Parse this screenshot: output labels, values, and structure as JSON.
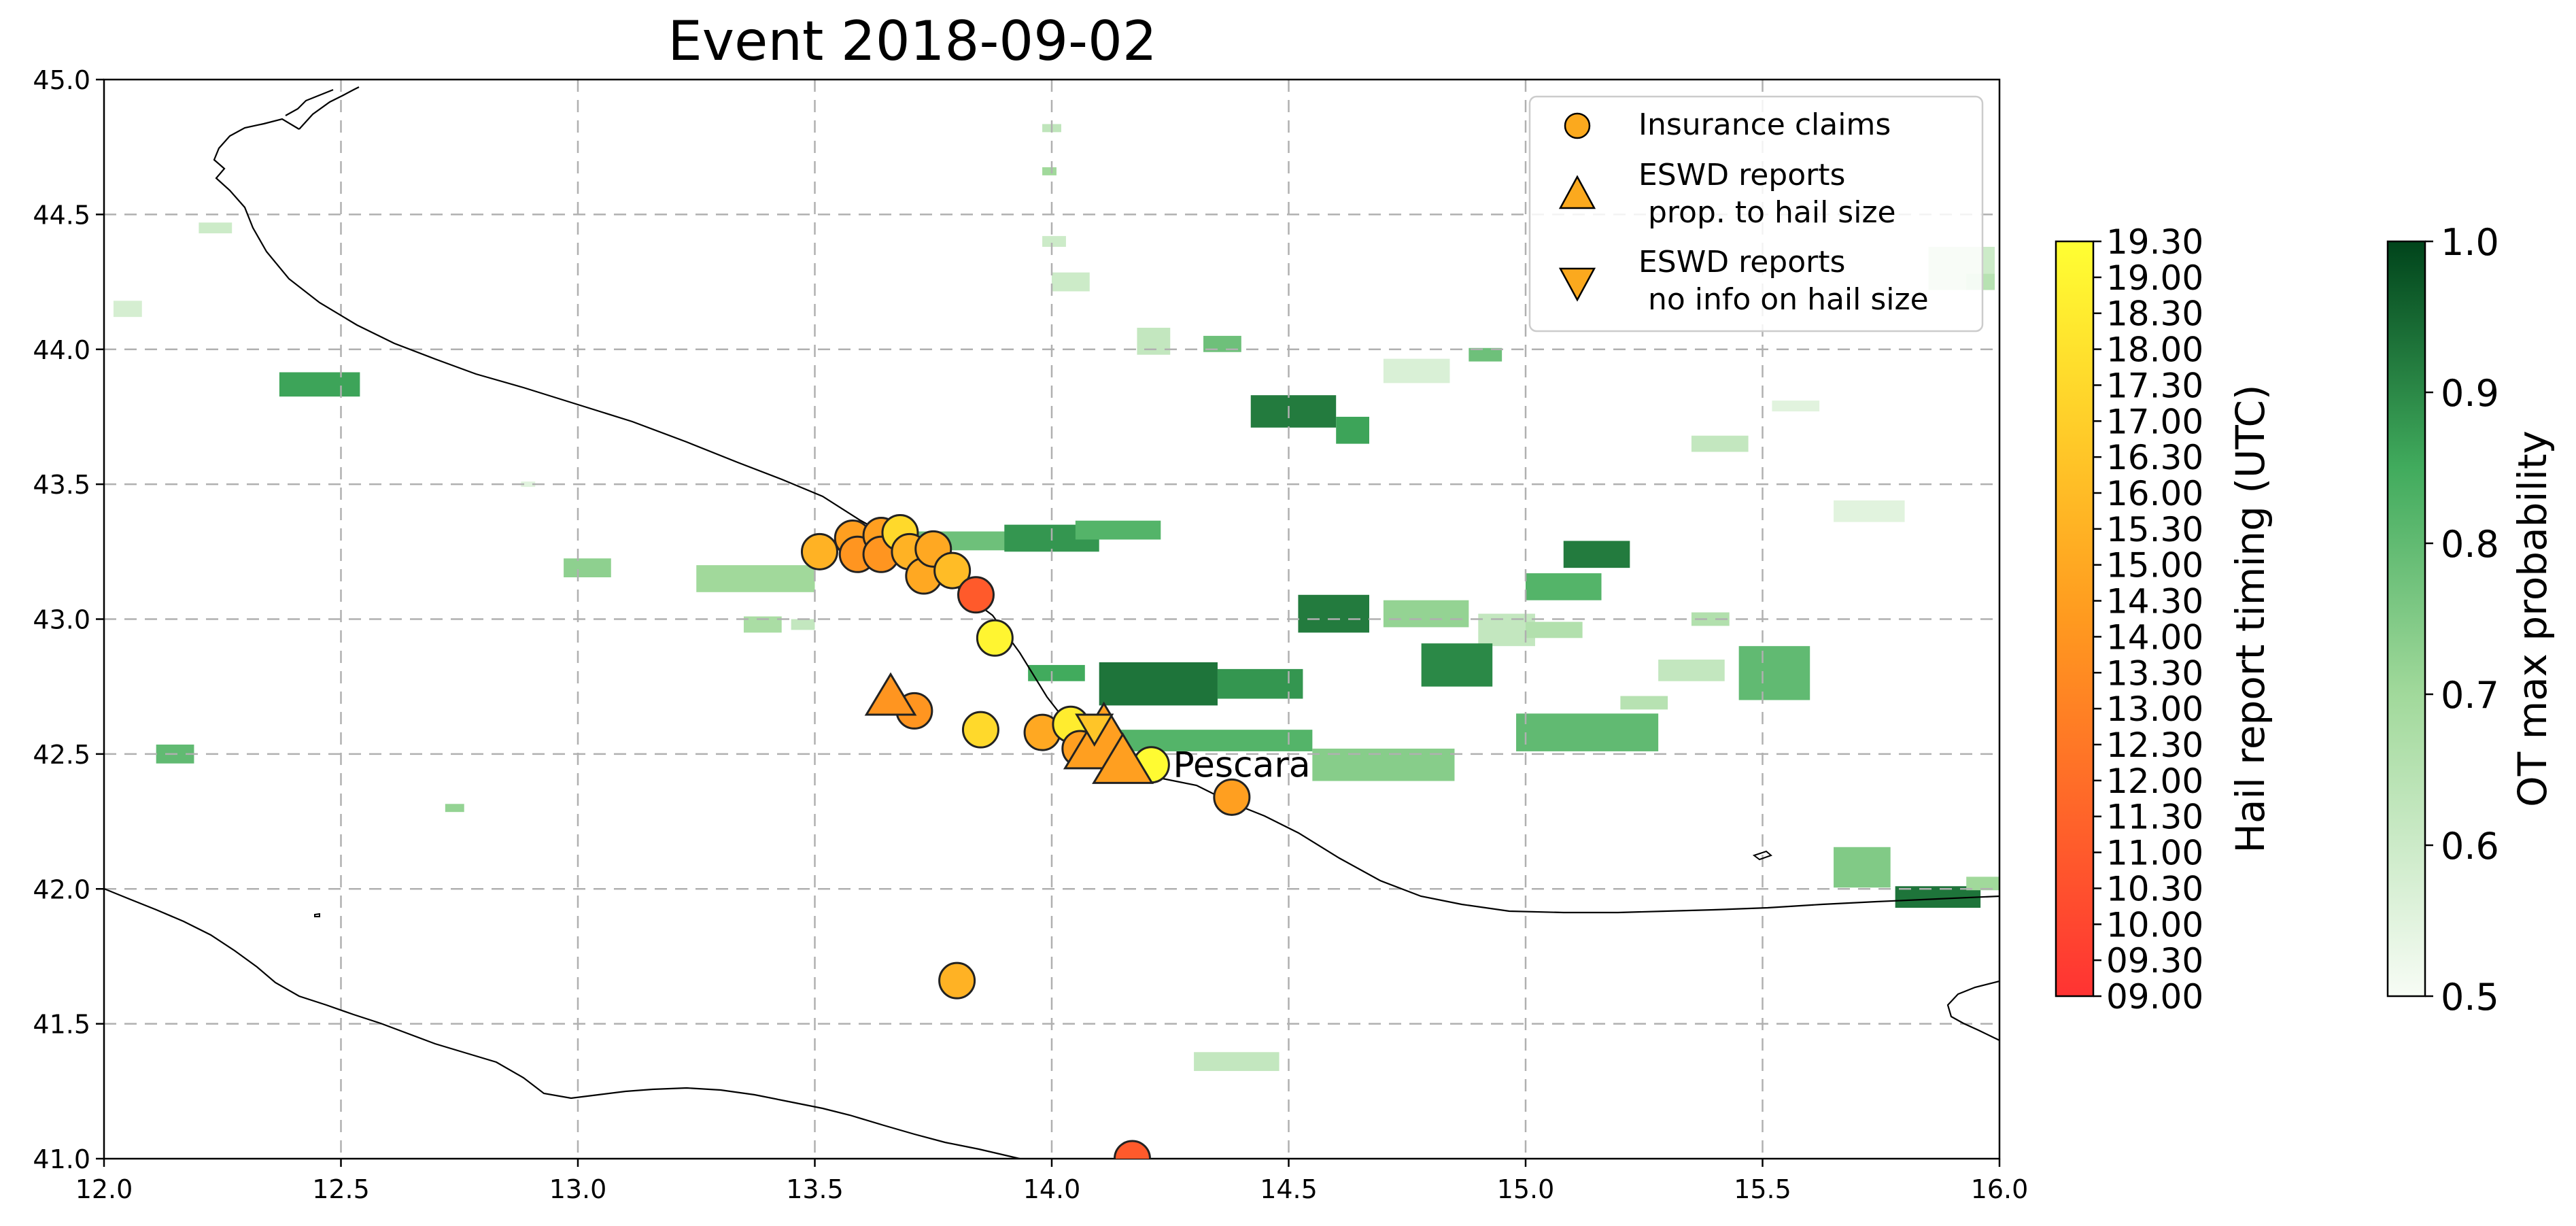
{
  "title": "Event 2018-09-02",
  "map": {
    "x_ticks": [
      "12.0",
      "12.5",
      "13.0",
      "13.5",
      "14.0",
      "14.5",
      "15.0",
      "15.5",
      "16.0"
    ],
    "x_values": [
      12.0,
      12.5,
      13.0,
      13.5,
      14.0,
      14.5,
      15.0,
      15.5,
      16.0
    ],
    "y_ticks": [
      "41.0",
      "41.5",
      "42.0",
      "42.5",
      "43.0",
      "43.5",
      "44.0",
      "44.5",
      "45.0"
    ],
    "y_values": [
      41.0,
      41.5,
      42.0,
      42.5,
      43.0,
      43.5,
      44.0,
      44.5,
      45.0
    ],
    "lon_range": [
      12.0,
      16.0
    ],
    "lat_range": [
      41.0,
      45.0
    ],
    "grid": true,
    "city_label": "Pescara",
    "city_lon": 14.21,
    "city_lat": 42.46
  },
  "legend": {
    "placement": "top-right",
    "items": [
      {
        "marker": "circle",
        "label_lines": [
          "Insurance claims"
        ]
      },
      {
        "marker": "triangle-up",
        "label_lines": [
          "ESWD reports",
          " prop. to hail size"
        ]
      },
      {
        "marker": "triangle-down",
        "label_lines": [
          "ESWD reports",
          " no info on hail size"
        ]
      }
    ]
  },
  "colorbar_timing": {
    "label": "Hail report timing (UTC)",
    "ticks": [
      "09.00",
      "09.30",
      "10.00",
      "10.30",
      "11.00",
      "11.30",
      "12.00",
      "12.30",
      "13.00",
      "13.30",
      "14.00",
      "14.30",
      "15.00",
      "15.30",
      "16.00",
      "16.30",
      "17.00",
      "17.30",
      "18.00",
      "18.30",
      "19.00",
      "19.30"
    ],
    "color_low": "#ff3333",
    "color_mid": "#ff9a1f",
    "color_high": "#ffff33"
  },
  "colorbar_ot": {
    "label": "OT max probability",
    "ticks": [
      "0.5",
      "0.6",
      "0.7",
      "0.8",
      "0.9",
      "1.0"
    ],
    "tick_values": [
      0.5,
      0.6,
      0.7,
      0.8,
      0.9,
      1.0
    ],
    "range": [
      0.5,
      1.0
    ],
    "color_low": "#f7fcf5",
    "color_high": "#00441b"
  },
  "chart_data": {
    "type": "scatter",
    "title": "Event 2018-09-02",
    "xlim": [
      12.0,
      16.0
    ],
    "ylim": [
      41.0,
      45.0
    ],
    "insurance_claims": [
      {
        "lon": 13.51,
        "lat": 43.25,
        "t": 15.5
      },
      {
        "lon": 13.58,
        "lat": 43.3,
        "t": 14.5
      },
      {
        "lon": 13.59,
        "lat": 43.24,
        "t": 14.0
      },
      {
        "lon": 13.64,
        "lat": 43.31,
        "t": 14.5
      },
      {
        "lon": 13.64,
        "lat": 43.24,
        "t": 14.0
      },
      {
        "lon": 13.68,
        "lat": 43.32,
        "t": 17.5
      },
      {
        "lon": 13.7,
        "lat": 43.25,
        "t": 15.5
      },
      {
        "lon": 13.73,
        "lat": 43.16,
        "t": 15.0
      },
      {
        "lon": 13.75,
        "lat": 43.26,
        "t": 15.0
      },
      {
        "lon": 13.79,
        "lat": 43.18,
        "t": 16.0
      },
      {
        "lon": 13.84,
        "lat": 43.09,
        "t": 11.0
      },
      {
        "lon": 13.88,
        "lat": 42.93,
        "t": 19.0
      },
      {
        "lon": 13.71,
        "lat": 42.66,
        "t": 14.0
      },
      {
        "lon": 13.85,
        "lat": 42.59,
        "t": 17.5
      },
      {
        "lon": 13.98,
        "lat": 42.58,
        "t": 15.0
      },
      {
        "lon": 14.04,
        "lat": 42.61,
        "t": 18.5
      },
      {
        "lon": 14.06,
        "lat": 42.52,
        "t": 14.5
      },
      {
        "lon": 14.21,
        "lat": 42.46,
        "t": 19.3
      },
      {
        "lon": 14.38,
        "lat": 42.34,
        "t": 14.5
      },
      {
        "lon": 13.8,
        "lat": 41.66,
        "t": 15.5
      },
      {
        "lon": 14.17,
        "lat": 41.0,
        "t": 11.0
      }
    ],
    "eswd_size": [
      {
        "lon": 13.66,
        "lat": 42.71,
        "t": 14.0,
        "size": 1.0
      },
      {
        "lon": 14.11,
        "lat": 42.55,
        "t": 14.5,
        "size": 1.6
      },
      {
        "lon": 14.15,
        "lat": 42.47,
        "t": 14.5,
        "size": 1.2
      }
    ],
    "eswd_noinfo": [
      {
        "lon": 14.09,
        "lat": 42.6,
        "t": 16.5
      }
    ],
    "ot_cells": [
      {
        "lon": 12.37,
        "lat": 43.87,
        "w": 0.17,
        "h": 0.09,
        "p": 0.86
      },
      {
        "lon": 12.02,
        "lat": 44.15,
        "w": 0.06,
        "h": 0.06,
        "p": 0.58
      },
      {
        "lon": 12.2,
        "lat": 44.45,
        "w": 0.07,
        "h": 0.04,
        "p": 0.6
      },
      {
        "lon": 12.11,
        "lat": 42.5,
        "w": 0.08,
        "h": 0.07,
        "p": 0.8
      },
      {
        "lon": 12.72,
        "lat": 42.3,
        "w": 0.04,
        "h": 0.03,
        "p": 0.72
      },
      {
        "lon": 12.97,
        "lat": 43.19,
        "w": 0.1,
        "h": 0.07,
        "p": 0.73
      },
      {
        "lon": 13.25,
        "lat": 43.15,
        "w": 0.25,
        "h": 0.1,
        "p": 0.7
      },
      {
        "lon": 13.35,
        "lat": 42.98,
        "w": 0.08,
        "h": 0.06,
        "p": 0.68
      },
      {
        "lon": 13.62,
        "lat": 43.29,
        "w": 0.35,
        "h": 0.07,
        "p": 0.78
      },
      {
        "lon": 13.9,
        "lat": 43.3,
        "w": 0.2,
        "h": 0.1,
        "p": 0.88
      },
      {
        "lon": 14.05,
        "lat": 43.33,
        "w": 0.18,
        "h": 0.07,
        "p": 0.82
      },
      {
        "lon": 13.95,
        "lat": 42.8,
        "w": 0.12,
        "h": 0.06,
        "p": 0.85
      },
      {
        "lon": 14.1,
        "lat": 42.76,
        "w": 0.25,
        "h": 0.16,
        "p": 0.93
      },
      {
        "lon": 14.35,
        "lat": 42.76,
        "w": 0.18,
        "h": 0.11,
        "p": 0.88
      },
      {
        "lon": 14.1,
        "lat": 42.55,
        "w": 0.45,
        "h": 0.08,
        "p": 0.82
      },
      {
        "lon": 14.55,
        "lat": 42.46,
        "w": 0.3,
        "h": 0.12,
        "p": 0.74
      },
      {
        "lon": 14.52,
        "lat": 43.02,
        "w": 0.15,
        "h": 0.14,
        "p": 0.92
      },
      {
        "lon": 14.7,
        "lat": 43.02,
        "w": 0.18,
        "h": 0.1,
        "p": 0.72
      },
      {
        "lon": 14.9,
        "lat": 42.96,
        "w": 0.12,
        "h": 0.12,
        "p": 0.62
      },
      {
        "lon": 14.78,
        "lat": 42.83,
        "w": 0.15,
        "h": 0.16,
        "p": 0.9
      },
      {
        "lon": 14.98,
        "lat": 42.58,
        "w": 0.3,
        "h": 0.14,
        "p": 0.8
      },
      {
        "lon": 15.2,
        "lat": 42.69,
        "w": 0.1,
        "h": 0.05,
        "p": 0.65
      },
      {
        "lon": 15.0,
        "lat": 43.12,
        "w": 0.16,
        "h": 0.1,
        "p": 0.82
      },
      {
        "lon": 15.08,
        "lat": 43.24,
        "w": 0.14,
        "h": 0.1,
        "p": 0.92
      },
      {
        "lon": 15.0,
        "lat": 42.96,
        "w": 0.12,
        "h": 0.06,
        "p": 0.66
      },
      {
        "lon": 15.45,
        "lat": 42.8,
        "w": 0.15,
        "h": 0.2,
        "p": 0.8
      },
      {
        "lon": 15.28,
        "lat": 42.81,
        "w": 0.14,
        "h": 0.08,
        "p": 0.62
      },
      {
        "lon": 15.35,
        "lat": 43.0,
        "w": 0.08,
        "h": 0.05,
        "p": 0.66
      },
      {
        "lon": 14.42,
        "lat": 43.77,
        "w": 0.18,
        "h": 0.12,
        "p": 0.92
      },
      {
        "lon": 14.6,
        "lat": 43.7,
        "w": 0.07,
        "h": 0.1,
        "p": 0.86
      },
      {
        "lon": 14.32,
        "lat": 44.02,
        "w": 0.08,
        "h": 0.06,
        "p": 0.78
      },
      {
        "lon": 14.18,
        "lat": 44.03,
        "w": 0.07,
        "h": 0.1,
        "p": 0.62
      },
      {
        "lon": 14.7,
        "lat": 43.92,
        "w": 0.14,
        "h": 0.09,
        "p": 0.57
      },
      {
        "lon": 14.88,
        "lat": 43.98,
        "w": 0.07,
        "h": 0.05,
        "p": 0.78
      },
      {
        "lon": 14.0,
        "lat": 44.25,
        "w": 0.08,
        "h": 0.07,
        "p": 0.6
      },
      {
        "lon": 13.98,
        "lat": 44.82,
        "w": 0.04,
        "h": 0.03,
        "p": 0.63
      },
      {
        "lon": 13.98,
        "lat": 44.66,
        "w": 0.03,
        "h": 0.03,
        "p": 0.7
      },
      {
        "lon": 13.98,
        "lat": 44.4,
        "w": 0.05,
        "h": 0.04,
        "p": 0.6
      },
      {
        "lon": 15.35,
        "lat": 43.65,
        "w": 0.12,
        "h": 0.06,
        "p": 0.62
      },
      {
        "lon": 15.52,
        "lat": 43.79,
        "w": 0.1,
        "h": 0.04,
        "p": 0.55
      },
      {
        "lon": 15.65,
        "lat": 43.4,
        "w": 0.15,
        "h": 0.08,
        "p": 0.55
      },
      {
        "lon": 15.85,
        "lat": 44.3,
        "w": 0.14,
        "h": 0.16,
        "p": 0.6
      },
      {
        "lon": 15.93,
        "lat": 44.25,
        "w": 0.06,
        "h": 0.06,
        "p": 0.65
      },
      {
        "lon": 15.65,
        "lat": 42.08,
        "w": 0.12,
        "h": 0.15,
        "p": 0.75
      },
      {
        "lon": 15.78,
        "lat": 41.97,
        "w": 0.18,
        "h": 0.08,
        "p": 0.93
      },
      {
        "lon": 15.93,
        "lat": 42.02,
        "w": 0.1,
        "h": 0.05,
        "p": 0.7
      },
      {
        "lon": 14.3,
        "lat": 41.36,
        "w": 0.18,
        "h": 0.07,
        "p": 0.62
      },
      {
        "lon": 13.45,
        "lat": 42.98,
        "w": 0.05,
        "h": 0.04,
        "p": 0.62
      },
      {
        "lon": 12.88,
        "lat": 43.5,
        "w": 0.03,
        "h": 0.02,
        "p": 0.55
      }
    ]
  }
}
